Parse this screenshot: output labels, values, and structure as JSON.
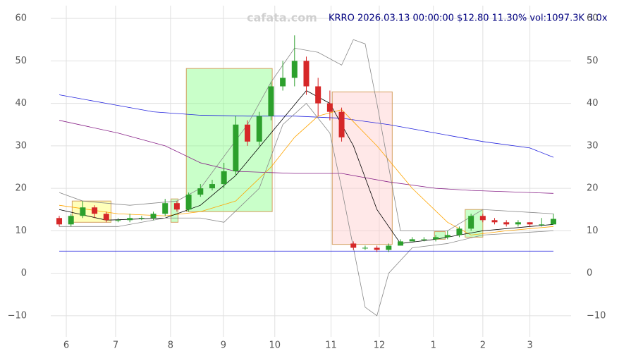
{
  "chart_data": {
    "type": "candlestick",
    "title": "KRRO 2026.03.13 00:00:00 $12.80 11.30% vol:1097.3K 3.0x",
    "watermark": "cafata.com",
    "xlim": [
      -0.72,
      43.5
    ],
    "xticks": [
      {
        "value": 0.6,
        "label": "6"
      },
      {
        "value": 4.79,
        "label": "7"
      },
      {
        "value": 9.46,
        "label": "8"
      },
      {
        "value": 13.95,
        "label": "9"
      },
      {
        "value": 18.32,
        "label": "10"
      },
      {
        "value": 23.1,
        "label": "11"
      },
      {
        "value": 27.2,
        "label": "12"
      },
      {
        "value": 31.8,
        "label": "1"
      },
      {
        "value": 36.0,
        "label": "2"
      },
      {
        "value": 40.0,
        "label": "3"
      }
    ],
    "ylim": [
      -15,
      63
    ],
    "yticks": [
      {
        "value": -10,
        "label": "−10"
      },
      0,
      10,
      20,
      30,
      40,
      50,
      60
    ],
    "grid": true,
    "up_color": "#2ca02c",
    "down_color": "#d62728",
    "x": [
      0,
      1,
      2,
      3,
      4,
      5,
      6,
      7,
      8,
      9,
      10,
      11,
      12,
      13,
      14,
      15,
      16,
      17,
      18,
      19,
      20,
      21,
      22,
      23,
      24,
      25,
      26,
      27,
      28,
      29,
      30,
      31,
      32,
      33,
      34,
      35,
      36,
      37,
      38,
      39,
      40,
      41,
      42
    ],
    "open": [
      13,
      11.5,
      13.5,
      15.5,
      14,
      12.5,
      12.5,
      13,
      13,
      14,
      16.5,
      15,
      18.5,
      20,
      21,
      24,
      35,
      31,
      37,
      44,
      46,
      50,
      44,
      40,
      38,
      7,
      6,
      6,
      5.5,
      6.5,
      7.5,
      8,
      8,
      8.5,
      9,
      10.5,
      13.5,
      12.5,
      12,
      11.5,
      12,
      11.5,
      11.5
    ],
    "high": [
      13.5,
      14,
      17,
      16,
      14.5,
      13,
      14,
      13.5,
      14.5,
      17.5,
      17,
      19,
      21,
      22,
      26,
      37,
      36,
      38,
      45,
      50,
      56,
      51,
      46,
      43,
      39,
      7.5,
      6.5,
      6.5,
      7,
      8,
      8.5,
      8.5,
      9,
      10,
      11,
      14,
      14,
      13,
      12.5,
      12.5,
      12,
      13,
      14
    ],
    "low": [
      11,
      11,
      13,
      13,
      12,
      12,
      12,
      12.5,
      12.5,
      13.5,
      14.5,
      14.5,
      18,
      19.5,
      20,
      23,
      30,
      30,
      36,
      43,
      44,
      42,
      37,
      36,
      31,
      5.5,
      5.5,
      5,
      5,
      6.5,
      7.5,
      7.5,
      7.5,
      8,
      8.5,
      10,
      12,
      11.5,
      11,
      11,
      11,
      11,
      11.5
    ],
    "close": [
      11.5,
      13.5,
      15.5,
      14,
      12.5,
      12.5,
      13,
      13,
      14,
      16.5,
      15,
      18.5,
      20,
      21,
      24,
      35,
      31,
      37,
      44,
      46,
      50,
      44,
      40,
      38,
      32,
      6,
      6,
      5.5,
      6.5,
      7.5,
      8,
      8,
      8.5,
      9,
      10.5,
      13.5,
      12.5,
      12,
      11.5,
      12,
      11.5,
      11.5,
      12.8
    ],
    "series": [
      {
        "color": "#2222dd",
        "x": [
          0,
          4,
          8,
          12,
          16,
          20,
          24,
          28,
          32,
          36,
          40,
          42
        ],
        "values": [
          42,
          40,
          38,
          37.2,
          37,
          37,
          36.5,
          35,
          33,
          31,
          29.5,
          27.3
        ]
      },
      {
        "color": "#882288",
        "x": [
          0,
          5,
          9,
          12,
          15,
          20,
          24,
          28,
          32,
          35,
          40,
          42
        ],
        "values": [
          36,
          33,
          30,
          26,
          24,
          23.5,
          23.5,
          21.5,
          20,
          19.5,
          19,
          18.8
        ]
      },
      {
        "color": "#ffa500",
        "x": [
          0,
          5,
          9,
          12,
          15,
          18,
          20,
          22,
          24,
          27,
          30,
          33,
          35,
          38,
          42
        ],
        "values": [
          16,
          14,
          13.5,
          14.5,
          17,
          25,
          32,
          37,
          38.5,
          30,
          20,
          12,
          9,
          10,
          11
        ]
      },
      {
        "color": "#000000",
        "x": [
          0,
          4,
          9,
          12,
          15,
          18,
          21,
          23,
          25,
          27,
          29,
          32,
          34,
          36,
          40,
          42
        ],
        "values": [
          15,
          12.5,
          13,
          16,
          23,
          33,
          43,
          40,
          30,
          15,
          7,
          8,
          9,
          10,
          11,
          11.5
        ]
      },
      {
        "color": "#888888",
        "x": [
          0,
          2,
          6,
          10,
          12,
          16,
          18,
          20,
          22,
          24,
          25,
          26,
          27,
          29,
          33,
          36,
          42
        ],
        "values": [
          19,
          17,
          16,
          17,
          20,
          35,
          45,
          53,
          52,
          49,
          55,
          54,
          40,
          10,
          10,
          15,
          14
        ]
      },
      {
        "color": "#888888",
        "x": [
          0,
          5,
          9,
          12,
          14,
          17,
          19,
          21,
          23,
          24,
          26,
          27,
          28,
          30,
          33,
          36,
          42
        ],
        "values": [
          11,
          11,
          13,
          13,
          12,
          20,
          35,
          40,
          33,
          20,
          -8,
          -10,
          0,
          6,
          7,
          9,
          10
        ]
      },
      {
        "color": "#2222dd",
        "x": [
          0,
          42
        ],
        "values": [
          5.2,
          5.2
        ]
      }
    ],
    "boxes": [
      {
        "x0": 1.1,
        "x1": 4.4,
        "y0": 12,
        "y1": 17,
        "color": "#ffff66"
      },
      {
        "x0": 9.5,
        "x1": 10.1,
        "y0": 12,
        "y1": 17.5,
        "color": "#88ff88"
      },
      {
        "x0": 10.8,
        "x1": 18.1,
        "y0": 14.5,
        "y1": 48.2,
        "color": "#88ff88"
      },
      {
        "x0": 23.2,
        "x1": 28.3,
        "y0": 6.8,
        "y1": 42.7,
        "color": "#ffcccc"
      },
      {
        "x0": 31.9,
        "x1": 32.8,
        "y0": 8,
        "y1": 9.8,
        "color": "#88ff88"
      },
      {
        "x0": 34.5,
        "x1": 36.0,
        "y0": 8.5,
        "y1": 15,
        "color": "#88ff88"
      }
    ]
  }
}
